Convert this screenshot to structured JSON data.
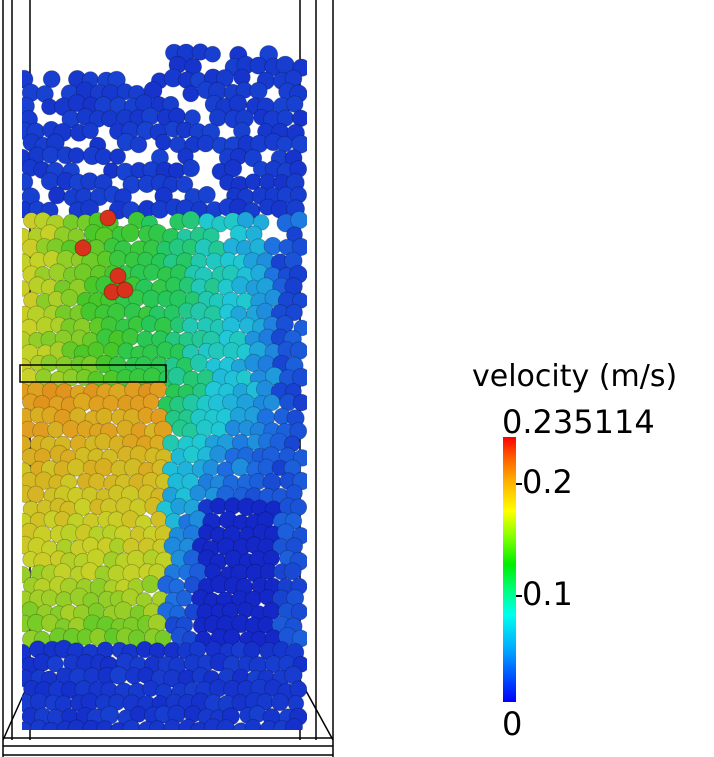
{
  "legend": {
    "title": "velocity (m/s)",
    "max_label": "0.235114",
    "min_label": "0",
    "max_value": 0.235114,
    "min_value": 0,
    "ticks": [
      {
        "label": "0.2",
        "value": 0.2
      },
      {
        "label": "0.1",
        "value": 0.1
      }
    ],
    "colormap": [
      "#0000ff",
      "#00aaff",
      "#00ffee",
      "#00ee00",
      "#ffff00",
      "#ff5500",
      "#ff0000"
    ]
  },
  "scene": {
    "particle_colors": {
      "slow": "#1a2fd6",
      "medium": "#2ecc40",
      "fast": "#e08a1e",
      "fastest": "#e0301e"
    }
  }
}
